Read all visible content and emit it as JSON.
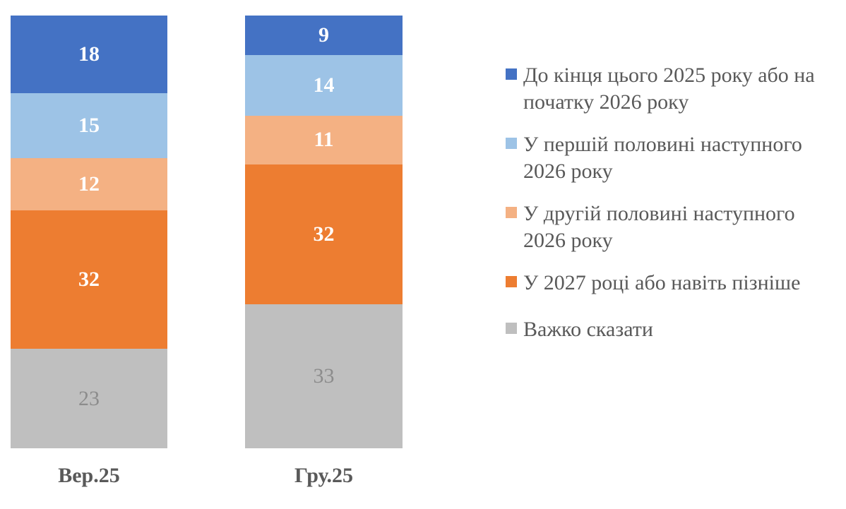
{
  "chart_data": {
    "type": "bar",
    "stacked": true,
    "orientation": "vertical",
    "grid": false,
    "legend_position": "right",
    "background": "#FFFFFF",
    "axis_text_color": "#595959",
    "ylim": [
      0,
      100
    ],
    "categories": [
      "Вер.25",
      "Гру.25"
    ],
    "series": [
      {
        "name": "До кінця цього 2025 року або на\nпочатку 2026 року",
        "values": [
          18,
          9
        ],
        "color": "#4472C4",
        "label_color": "#FFFFFF",
        "label_bold": true
      },
      {
        "name": "У першій половині наступного\n2026 року",
        "values": [
          15,
          14
        ],
        "color": "#9DC3E6",
        "label_color": "#FFFFFF",
        "label_bold": true
      },
      {
        "name": "У другій половині наступного\n2026 року",
        "values": [
          12,
          11
        ],
        "color": "#F4B183",
        "label_color": "#FFFFFF",
        "label_bold": true
      },
      {
        "name": "У 2027 році або навіть пізніше",
        "values": [
          32,
          32
        ],
        "color": "#ED7D31",
        "label_color": "#FFFFFF",
        "label_bold": true
      },
      {
        "name": "Важко сказати",
        "values": [
          23,
          33
        ],
        "color": "#BFBFBF",
        "label_color": "#8C8C8C",
        "label_bold": false
      }
    ]
  }
}
